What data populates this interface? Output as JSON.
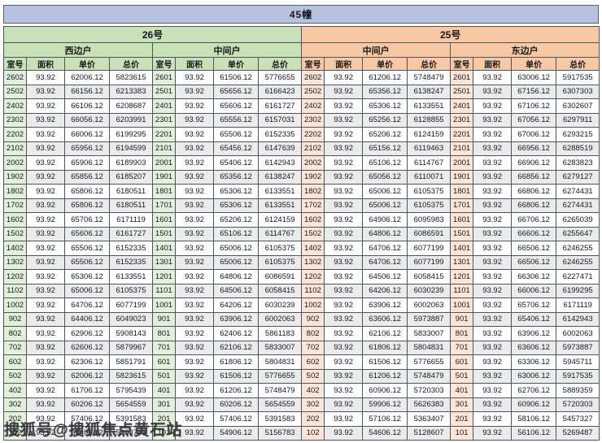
{
  "title": "45幢",
  "watermark": "搜狐号@搜狐焦点黄石站",
  "colors": {
    "title_bar": "#b7c2e1",
    "green_header": "#c8e1b6",
    "peach_header": "#f6c9a4",
    "green_tint": "#e2efda",
    "peach_tint": "#fbe5d6",
    "alt_row_gray": "#ebebeb",
    "border": "#50545c"
  },
  "buildings": [
    {
      "name": "26号",
      "theme": "green",
      "units": [
        "西边户",
        "中间户"
      ]
    },
    {
      "name": "25号",
      "theme": "peach",
      "units": [
        "中间户",
        "东边户"
      ]
    }
  ],
  "column_headers": [
    "室号",
    "面积",
    "单价",
    "总价"
  ],
  "groups": [
    {
      "building": "26号",
      "unit": "西边户",
      "theme": "green",
      "rows": [
        [
          "2602",
          "93.92",
          "62006.12",
          "5823615"
        ],
        [
          "2502",
          "93.92",
          "66156.12",
          "6213383"
        ],
        [
          "2402",
          "93.92",
          "66106.12",
          "6208687"
        ],
        [
          "2302",
          "93.92",
          "66056.12",
          "6203991"
        ],
        [
          "2202",
          "93.92",
          "66006.12",
          "6199295"
        ],
        [
          "2102",
          "93.92",
          "65956.12",
          "6194599"
        ],
        [
          "2002",
          "93.92",
          "65906.12",
          "6189903"
        ],
        [
          "1902",
          "93.92",
          "65856.12",
          "6185207"
        ],
        [
          "1802",
          "93.92",
          "65806.12",
          "6180511"
        ],
        [
          "1702",
          "93.92",
          "65806.12",
          "6180511"
        ],
        [
          "1602",
          "93.92",
          "65706.12",
          "6171119"
        ],
        [
          "1502",
          "93.92",
          "65606.12",
          "6161727"
        ],
        [
          "1402",
          "93.92",
          "65506.12",
          "6152335"
        ],
        [
          "1302",
          "93.92",
          "65506.12",
          "6152335"
        ],
        [
          "1202",
          "93.92",
          "65306.12",
          "6133551"
        ],
        [
          "1102",
          "93.92",
          "65006.12",
          "6105375"
        ],
        [
          "1002",
          "93.92",
          "64706.12",
          "6077199"
        ],
        [
          "902",
          "93.92",
          "64406.12",
          "6049023"
        ],
        [
          "802",
          "93.92",
          "62906.12",
          "5908143"
        ],
        [
          "702",
          "93.92",
          "62606.12",
          "5879967"
        ],
        [
          "602",
          "93.92",
          "62306.12",
          "5851791"
        ],
        [
          "502",
          "93.92",
          "62006.12",
          "5823615"
        ],
        [
          "402",
          "93.92",
          "61706.12",
          "5795439"
        ],
        [
          "302",
          "93.92",
          "60206.12",
          "5654559"
        ],
        [
          "202",
          "93.92",
          "57406.12",
          "5391583"
        ],
        [
          "102",
          "93.92",
          "55406.12",
          "5203743"
        ]
      ]
    },
    {
      "building": "26号",
      "unit": "中间户",
      "theme": "green",
      "rows": [
        [
          "2601",
          "93.92",
          "61506.12",
          "5776655"
        ],
        [
          "2501",
          "93.92",
          "65656.12",
          "6166423"
        ],
        [
          "2401",
          "93.92",
          "65606.12",
          "6161727"
        ],
        [
          "2301",
          "93.92",
          "65556.12",
          "6157031"
        ],
        [
          "2201",
          "93.92",
          "65506.12",
          "6152335"
        ],
        [
          "2101",
          "93.92",
          "65456.12",
          "6147639"
        ],
        [
          "2001",
          "93.92",
          "65406.12",
          "6142943"
        ],
        [
          "1901",
          "93.92",
          "65356.12",
          "6138247"
        ],
        [
          "1801",
          "93.92",
          "65306.12",
          "6133551"
        ],
        [
          "1701",
          "93.92",
          "65306.12",
          "6133551"
        ],
        [
          "1601",
          "93.92",
          "65206.12",
          "6124159"
        ],
        [
          "1501",
          "93.92",
          "65106.12",
          "6114767"
        ],
        [
          "1401",
          "93.92",
          "65006.12",
          "6105375"
        ],
        [
          "1301",
          "93.92",
          "65006.12",
          "6105375"
        ],
        [
          "1201",
          "93.92",
          "64806.12",
          "6086591"
        ],
        [
          "1101",
          "93.92",
          "64506.12",
          "6058415"
        ],
        [
          "1001",
          "93.92",
          "64206.12",
          "6030239"
        ],
        [
          "901",
          "93.92",
          "63906.12",
          "6002063"
        ],
        [
          "801",
          "93.92",
          "62406.12",
          "5861183"
        ],
        [
          "701",
          "93.92",
          "62106.12",
          "5833007"
        ],
        [
          "601",
          "93.92",
          "61806.12",
          "5804831"
        ],
        [
          "501",
          "93.92",
          "61506.12",
          "5776655"
        ],
        [
          "401",
          "93.92",
          "61206.12",
          "5748479"
        ],
        [
          "301",
          "93.92",
          "60206.12",
          "5654559"
        ],
        [
          "201",
          "93.92",
          "57406.12",
          "5391583"
        ],
        [
          "101",
          "93.92",
          "54906.12",
          "5156783"
        ]
      ]
    },
    {
      "building": "25号",
      "unit": "中间户",
      "theme": "peach",
      "rows": [
        [
          "2602",
          "93.92",
          "61206.12",
          "5748479"
        ],
        [
          "2502",
          "93.92",
          "65356.12",
          "6138247"
        ],
        [
          "2402",
          "93.92",
          "65306.12",
          "6133551"
        ],
        [
          "2302",
          "93.92",
          "65256.12",
          "6128855"
        ],
        [
          "2202",
          "93.92",
          "65206.12",
          "6124159"
        ],
        [
          "2102",
          "93.92",
          "65156.12",
          "6119463"
        ],
        [
          "2002",
          "93.92",
          "65106.12",
          "6114767"
        ],
        [
          "1902",
          "93.92",
          "65056.12",
          "6110071"
        ],
        [
          "1802",
          "93.92",
          "65006.12",
          "6105375"
        ],
        [
          "1702",
          "93.92",
          "65006.12",
          "6105375"
        ],
        [
          "1602",
          "93.92",
          "64906.12",
          "6095983"
        ],
        [
          "1502",
          "93.92",
          "64806.12",
          "6086591"
        ],
        [
          "1402",
          "93.92",
          "64706.12",
          "6077199"
        ],
        [
          "1302",
          "93.92",
          "64706.12",
          "6077199"
        ],
        [
          "1202",
          "93.92",
          "64506.12",
          "6058415"
        ],
        [
          "1102",
          "93.92",
          "64206.12",
          "6030239"
        ],
        [
          "1002",
          "93.92",
          "63906.12",
          "6002063"
        ],
        [
          "902",
          "93.92",
          "63606.12",
          "5973887"
        ],
        [
          "802",
          "93.92",
          "62106.12",
          "5833007"
        ],
        [
          "702",
          "93.92",
          "61806.12",
          "5804831"
        ],
        [
          "602",
          "93.92",
          "61506.12",
          "5776655"
        ],
        [
          "502",
          "93.92",
          "61206.12",
          "5748479"
        ],
        [
          "402",
          "93.92",
          "60906.12",
          "5720303"
        ],
        [
          "302",
          "93.92",
          "59906.12",
          "5626383"
        ],
        [
          "202",
          "93.92",
          "57106.12",
          "5363407"
        ],
        [
          "102",
          "93.92",
          "54606.12",
          "5128607"
        ]
      ]
    },
    {
      "building": "25号",
      "unit": "东边户",
      "theme": "peach",
      "rows": [
        [
          "2601",
          "93.92",
          "63006.12",
          "5917535"
        ],
        [
          "2501",
          "93.92",
          "67156.12",
          "6307303"
        ],
        [
          "2401",
          "93.92",
          "67106.12",
          "6302607"
        ],
        [
          "2301",
          "93.92",
          "67056.12",
          "6297911"
        ],
        [
          "2201",
          "93.92",
          "67006.12",
          "6293215"
        ],
        [
          "2101",
          "93.92",
          "66956.12",
          "6288519"
        ],
        [
          "2001",
          "93.92",
          "66906.12",
          "6283823"
        ],
        [
          "1901",
          "93.92",
          "66856.12",
          "6279127"
        ],
        [
          "1801",
          "93.92",
          "66806.12",
          "6274431"
        ],
        [
          "1701",
          "93.92",
          "66806.12",
          "6274431"
        ],
        [
          "1601",
          "93.92",
          "66706.12",
          "6265039"
        ],
        [
          "1501",
          "93.92",
          "66606.12",
          "6255647"
        ],
        [
          "1401",
          "93.92",
          "66506.12",
          "6246255"
        ],
        [
          "1301",
          "93.92",
          "66506.12",
          "6246255"
        ],
        [
          "1201",
          "93.92",
          "66306.12",
          "6227471"
        ],
        [
          "1101",
          "93.92",
          "66006.12",
          "6199295"
        ],
        [
          "1001",
          "93.92",
          "65706.12",
          "6171119"
        ],
        [
          "901",
          "93.92",
          "65406.12",
          "6142943"
        ],
        [
          "801",
          "93.92",
          "63906.12",
          "6002063"
        ],
        [
          "701",
          "93.92",
          "63606.12",
          "5973887"
        ],
        [
          "601",
          "93.92",
          "63306.12",
          "5945711"
        ],
        [
          "501",
          "93.92",
          "63006.12",
          "5917535"
        ],
        [
          "401",
          "93.92",
          "62706.12",
          "5889359"
        ],
        [
          "301",
          "93.92",
          "60906.12",
          "5720303"
        ],
        [
          "201",
          "93.92",
          "58106.12",
          "5457327"
        ],
        [
          "101",
          "93.92",
          "56106.12",
          "5269487"
        ]
      ]
    }
  ]
}
